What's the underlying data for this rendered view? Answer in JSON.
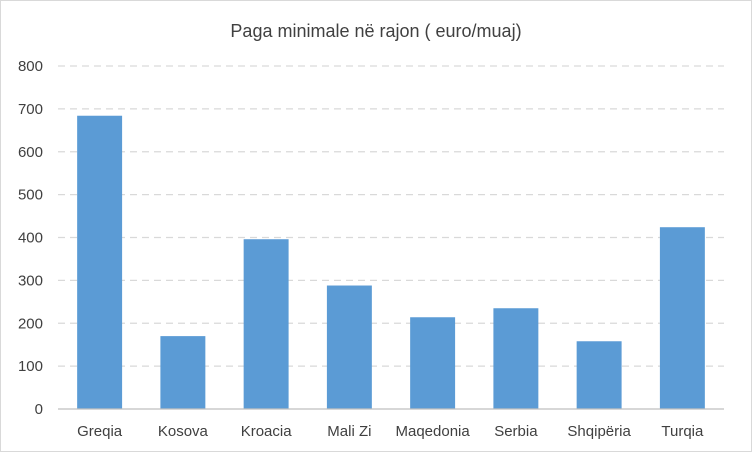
{
  "chart_data": {
    "type": "bar",
    "title": "Paga minimale  në rajon ( euro/muaj)",
    "xlabel": "",
    "ylabel": "",
    "categories": [
      "Greqia",
      "Kosova",
      "Kroacia",
      "Mali Zi",
      "Maqedonia",
      "Serbia",
      "Shqipëria",
      "Turqia"
    ],
    "values": [
      684,
      170,
      396,
      288,
      214,
      235,
      158,
      424
    ],
    "ylim": [
      0,
      800
    ],
    "yticks": [
      "0",
      "100",
      "200",
      "300",
      "400",
      "500",
      "600",
      "700",
      "800"
    ],
    "grid": true,
    "legend": "none",
    "bar_color": "#5b9bd5"
  }
}
